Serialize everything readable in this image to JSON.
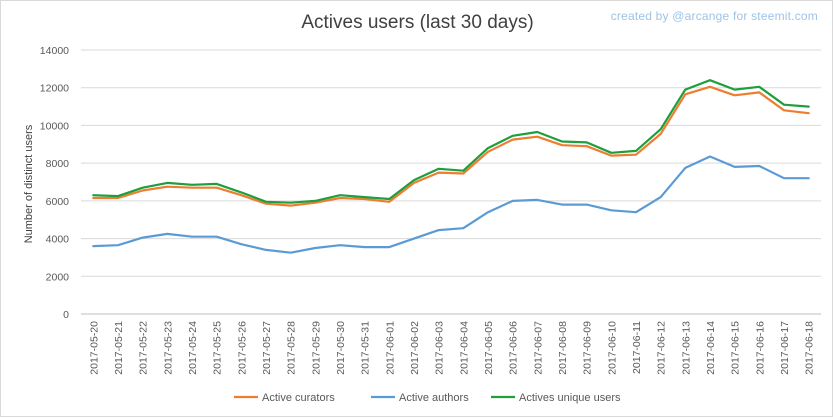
{
  "header": {
    "title": "Actives users (last 30 days)",
    "credit": "created by @arcange for steemit.com"
  },
  "chart_data": {
    "type": "line",
    "title": "Actives users (last 30 days)",
    "xlabel": "",
    "ylabel": "Number of distinct users",
    "ylim": [
      0,
      14000
    ],
    "yticks": [
      0,
      2000,
      4000,
      6000,
      8000,
      10000,
      12000,
      14000
    ],
    "ytick_labels": [
      "0",
      "2000",
      "4000",
      "6000",
      "8000",
      "10000",
      "12000",
      "14000"
    ],
    "grid": "horizontal",
    "legend_position": "bottom",
    "categories": [
      "2017-05-20",
      "2017-05-21",
      "2017-05-22",
      "2017-05-23",
      "2017-05-24",
      "2017-05-25",
      "2017-05-26",
      "2017-05-27",
      "2017-05-28",
      "2017-05-29",
      "2017-05-30",
      "2017-05-31",
      "2017-06-01",
      "2017-06-02",
      "2017-06-03",
      "2017-06-04",
      "2017-06-05",
      "2017-06-06",
      "2017-06-07",
      "2017-06-08",
      "2017-06-09",
      "2017-06-10",
      "2017-06-11",
      "2017-06-12",
      "2017-06-13",
      "2017-06-14",
      "2017-06-15",
      "2017-06-16",
      "2017-06-17",
      "2017-06-18"
    ],
    "series": [
      {
        "name": "Active curators",
        "color": "#ed7d31",
        "values": [
          6150,
          6150,
          6550,
          6750,
          6700,
          6700,
          6300,
          5850,
          5750,
          5900,
          6150,
          6100,
          5950,
          6950,
          7500,
          7450,
          8600,
          9250,
          9400,
          8950,
          8900,
          8400,
          8450,
          9550,
          11650,
          12050,
          11600,
          11750,
          10800,
          10650
        ]
      },
      {
        "name": "Active authors",
        "color": "#5b9bd5",
        "values": [
          3600,
          3650,
          4050,
          4250,
          4100,
          4100,
          3700,
          3400,
          3250,
          3500,
          3650,
          3550,
          3550,
          4000,
          4450,
          4550,
          5400,
          6000,
          6050,
          5800,
          5800,
          5500,
          5400,
          6200,
          7750,
          8350,
          7800,
          7850,
          7200,
          7200
        ]
      },
      {
        "name": "Actives unique users",
        "color": "#1e9e3c",
        "values": [
          6300,
          6250,
          6700,
          6950,
          6850,
          6900,
          6450,
          5950,
          5900,
          6000,
          6300,
          6200,
          6100,
          7100,
          7700,
          7600,
          8800,
          9450,
          9650,
          9150,
          9100,
          8550,
          8650,
          9800,
          11900,
          12400,
          11900,
          12050,
          11100,
          11000
        ]
      }
    ]
  }
}
